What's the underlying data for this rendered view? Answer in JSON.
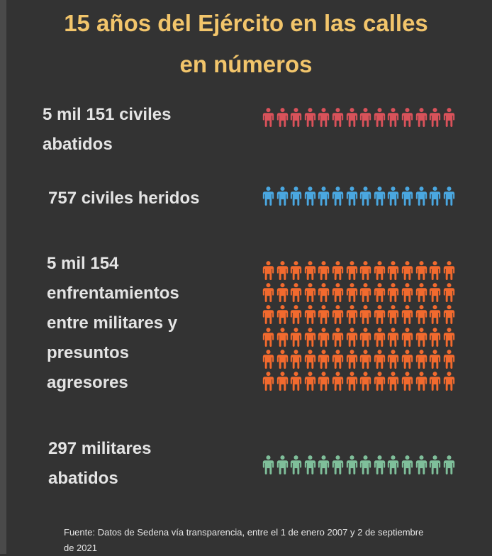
{
  "title": {
    "line1": "15 años del Ejército en las calles",
    "line2": "en números"
  },
  "chart_data": {
    "type": "pictogram",
    "title": "15 años del Ejército en las calles en números",
    "series": [
      {
        "name": "civiles_abatidos",
        "label_lines": [
          "5 mil 151 civiles",
          "abatidos"
        ],
        "value": 5151,
        "icons_shown": 14,
        "rows": 1,
        "color": "#d9525a"
      },
      {
        "name": "civiles_heridos",
        "label_lines": [
          "757 civiles heridos"
        ],
        "value": 757,
        "icons_shown": 14,
        "rows": 1,
        "color": "#4aa7e0"
      },
      {
        "name": "enfrentamientos",
        "label_lines": [
          "5 mil 154",
          "enfrentamientos",
          "entre militares y",
          "presuntos",
          "agresores"
        ],
        "value": 5154,
        "icons_shown": 84,
        "rows": 6,
        "color": "#f26a2e"
      },
      {
        "name": "militares_abatidos",
        "label_lines": [
          "297 militares",
          "abatidos"
        ],
        "value": 297,
        "icons_shown": 14,
        "rows": 1,
        "color": "#7fbf9a"
      }
    ]
  },
  "source": {
    "line1": "Fuente: Datos de Sedena vía transparencia,  entre el 1 de enero 2007 y 2 de septiembre",
    "line2": "de 2021"
  }
}
